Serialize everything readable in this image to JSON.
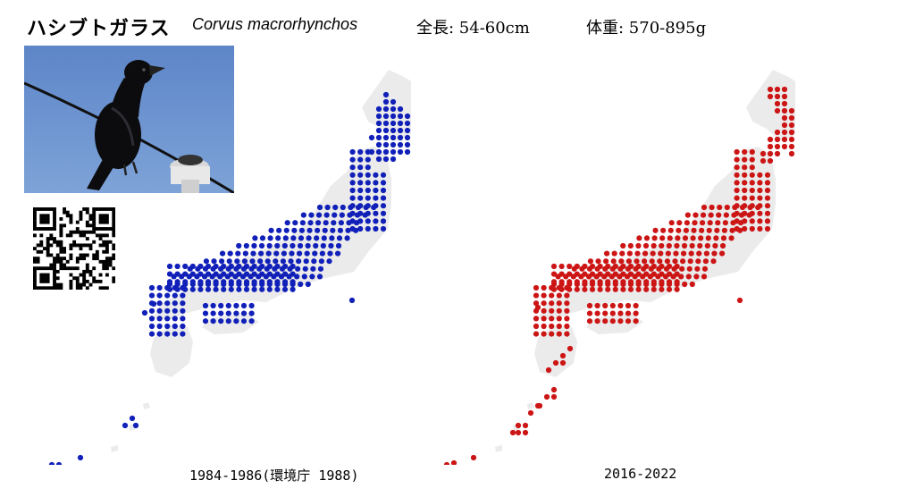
{
  "header": {
    "title_ja": "ハシブトガラス",
    "scientific_name": "Corvus macrorhynchos",
    "length": "全長: 54-60cm",
    "weight": "体重: 570-895g"
  },
  "photo": {
    "icon": "crow-photo"
  },
  "qr": {
    "icon": "qr-code"
  },
  "maps": [
    {
      "caption": "1984-1986(環境庁 1988)",
      "dot_color": "#1020b8"
    },
    {
      "caption": "2016-2022",
      "dot_color": "#cc1515"
    }
  ],
  "colors": {
    "land": "#ebebeb",
    "background": "#ffffff"
  }
}
